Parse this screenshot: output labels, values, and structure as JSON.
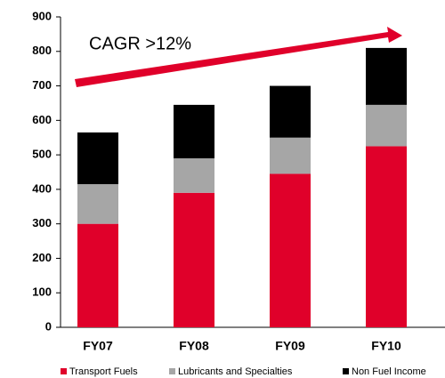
{
  "chart_data": {
    "type": "stacked_bar",
    "annotation": "CAGR >12%",
    "categories": [
      "FY07",
      "FY08",
      "FY09",
      "FY10"
    ],
    "series": [
      {
        "name": "Transport Fuels",
        "color": "#e0002a",
        "values": [
          300,
          390,
          445,
          525
        ]
      },
      {
        "name": "Lubricants and Specialties",
        "color": "#a6a6a6",
        "values": [
          115,
          100,
          105,
          120
        ]
      },
      {
        "name": "Non Fuel Income",
        "color": "#000000",
        "values": [
          150,
          155,
          150,
          165
        ]
      }
    ],
    "ylim": [
      0,
      900
    ],
    "yticks": [
      0,
      100,
      200,
      300,
      400,
      500,
      600,
      700,
      800,
      900
    ],
    "grid": false,
    "legend": "bottom"
  }
}
